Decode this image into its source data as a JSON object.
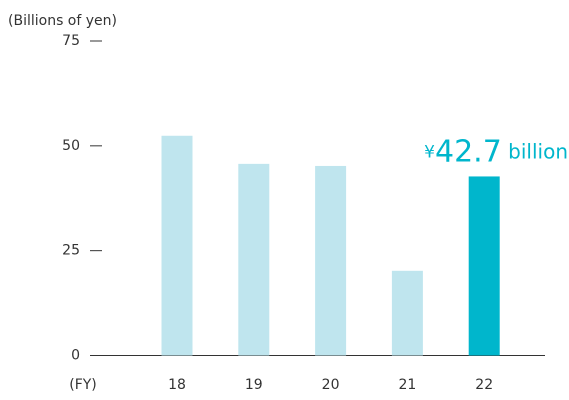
{
  "chart_data": {
    "type": "bar",
    "y_axis_label": "(Billions of yen)",
    "x_axis_label": "(FY)",
    "categories": [
      "18",
      "19",
      "20",
      "21",
      "22"
    ],
    "values": [
      52.4,
      45.7,
      45.2,
      20.2,
      42.7
    ],
    "value_labels": [
      null,
      null,
      null,
      null,
      "¥42.7 billion"
    ],
    "colors": [
      "#bfe5ee",
      "#bfe5ee",
      "#bfe5ee",
      "#bfe5ee",
      "#00b6cc"
    ],
    "label_color": "#00b6cc",
    "ylim": [
      0,
      75
    ],
    "yticks": [
      0,
      25,
      50,
      75
    ],
    "grid": false
  }
}
